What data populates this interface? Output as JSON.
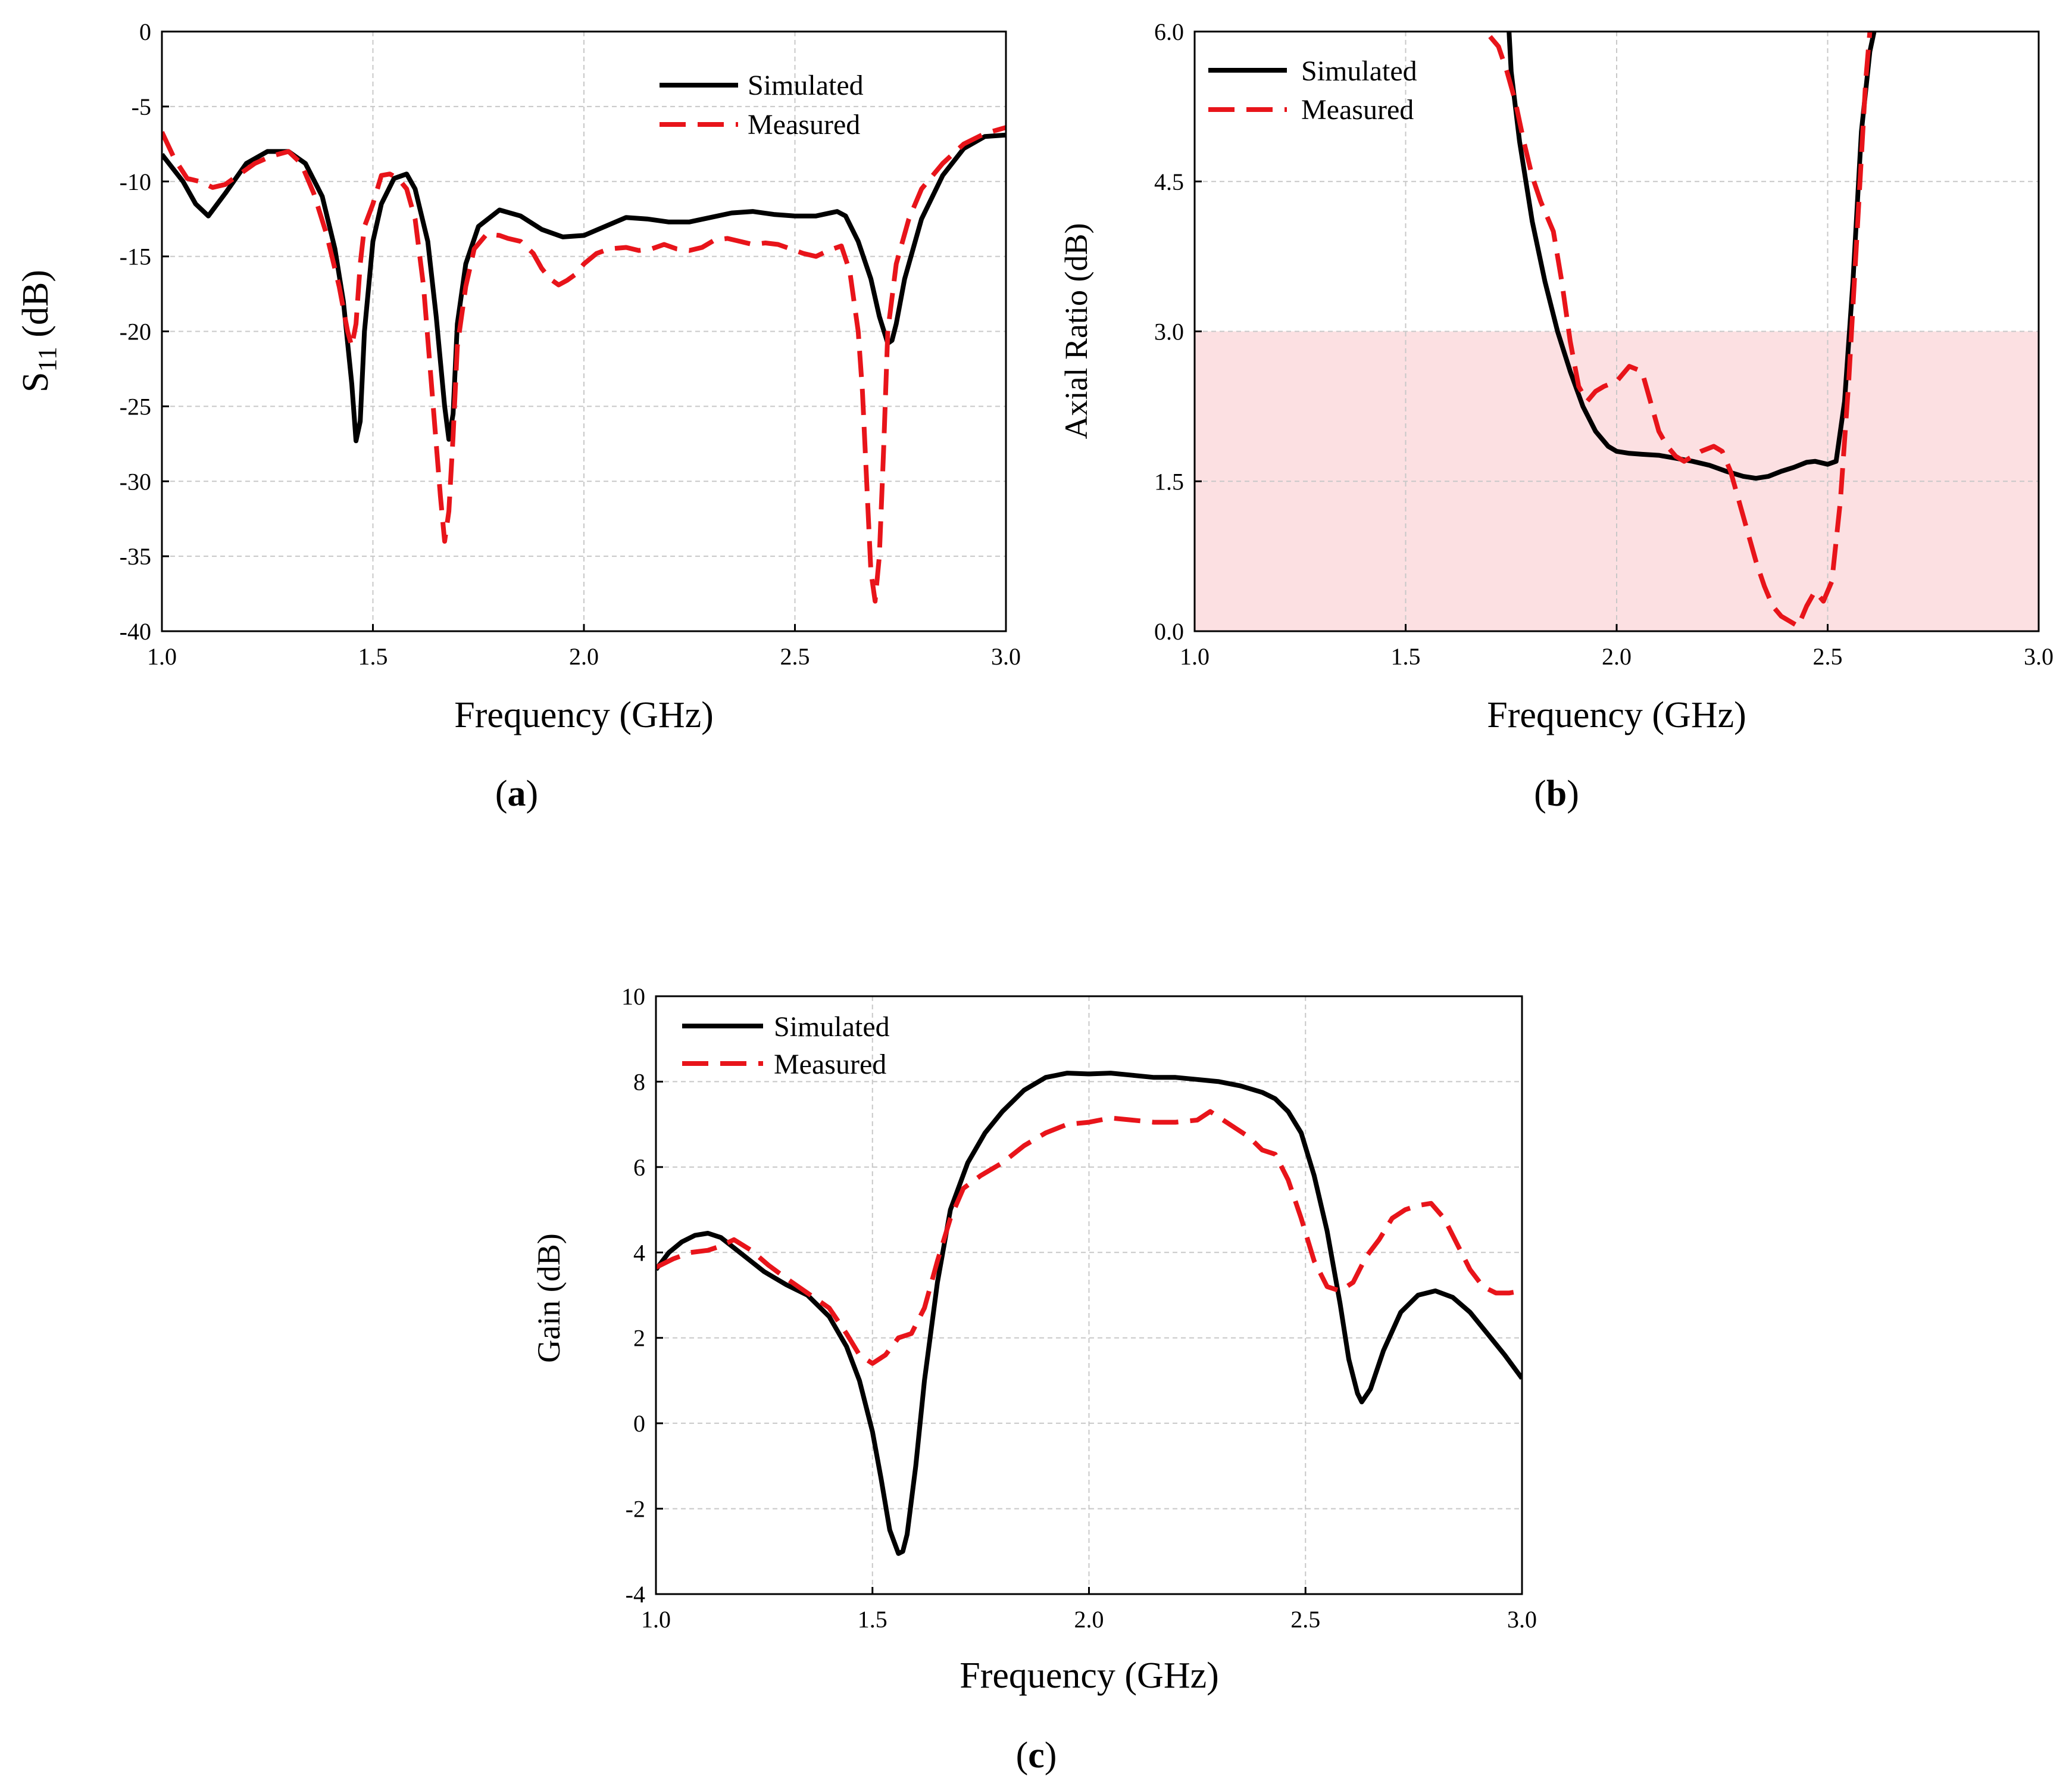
{
  "chart_data": [
    {
      "type": "line",
      "panel_label": "a",
      "xlabel": "Frequency (GHz)",
      "ylabel": {
        "main": "S",
        "sub": "11",
        "rest": " (dB)"
      },
      "xlim": [
        1.0,
        3.0
      ],
      "ylim": [
        -40,
        0
      ],
      "xticks": [
        1.0,
        1.5,
        2.0,
        2.5,
        3.0
      ],
      "xtick_labels": [
        "1.0",
        "1.5",
        "2.0",
        "2.5",
        "3.0"
      ],
      "yticks": [
        0,
        -5,
        -10,
        -15,
        -20,
        -25,
        -30,
        -35,
        -40
      ],
      "ytick_labels": [
        "0",
        "-5",
        "-10",
        "-15",
        "-20",
        "-25",
        "-30",
        "-35",
        "-40"
      ],
      "grid": true,
      "legend_position": "top-right",
      "series": [
        {
          "name": "Simulated",
          "color": "#000000",
          "style": "solid",
          "x": [
            1.0,
            1.05,
            1.08,
            1.11,
            1.15,
            1.2,
            1.25,
            1.3,
            1.34,
            1.38,
            1.41,
            1.43,
            1.45,
            1.46,
            1.47,
            1.48,
            1.5,
            1.52,
            1.55,
            1.58,
            1.6,
            1.63,
            1.65,
            1.67,
            1.68,
            1.69,
            1.7,
            1.72,
            1.75,
            1.8,
            1.85,
            1.9,
            1.95,
            2.0,
            2.05,
            2.1,
            2.15,
            2.2,
            2.25,
            2.3,
            2.35,
            2.4,
            2.45,
            2.5,
            2.55,
            2.6,
            2.62,
            2.65,
            2.68,
            2.7,
            2.72,
            2.73,
            2.74,
            2.76,
            2.8,
            2.85,
            2.9,
            2.95,
            3.0
          ],
          "y": [
            -8.2,
            -10.0,
            -11.5,
            -12.3,
            -10.8,
            -8.8,
            -8.0,
            -8.0,
            -8.8,
            -11.0,
            -14.5,
            -18.0,
            -23.5,
            -27.3,
            -26.0,
            -20.0,
            -14.0,
            -11.5,
            -9.8,
            -9.5,
            -10.5,
            -14.0,
            -19.0,
            -25.0,
            -27.2,
            -25.5,
            -19.5,
            -15.5,
            -13.0,
            -11.9,
            -12.3,
            -13.2,
            -13.7,
            -13.6,
            -13.0,
            -12.4,
            -12.5,
            -12.7,
            -12.7,
            -12.4,
            -12.1,
            -12.0,
            -12.2,
            -12.3,
            -12.3,
            -12.0,
            -12.3,
            -14.0,
            -16.5,
            -19.0,
            -20.8,
            -20.6,
            -19.5,
            -16.5,
            -12.5,
            -9.6,
            -7.8,
            -7.0,
            -6.9
          ]
        },
        {
          "name": "Measured",
          "color": "#e8141a",
          "style": "dashed",
          "x": [
            1.0,
            1.03,
            1.06,
            1.09,
            1.12,
            1.15,
            1.18,
            1.22,
            1.26,
            1.3,
            1.33,
            1.36,
            1.39,
            1.42,
            1.44,
            1.45,
            1.46,
            1.47,
            1.48,
            1.5,
            1.52,
            1.54,
            1.56,
            1.58,
            1.6,
            1.62,
            1.64,
            1.66,
            1.67,
            1.68,
            1.69,
            1.7,
            1.72,
            1.74,
            1.77,
            1.8,
            1.82,
            1.85,
            1.88,
            1.9,
            1.92,
            1.94,
            1.96,
            1.98,
            2.0,
            2.03,
            2.06,
            2.1,
            2.13,
            2.16,
            2.19,
            2.22,
            2.25,
            2.28,
            2.31,
            2.34,
            2.37,
            2.4,
            2.43,
            2.46,
            2.49,
            2.52,
            2.55,
            2.58,
            2.61,
            2.63,
            2.65,
            2.66,
            2.67,
            2.68,
            2.69,
            2.7,
            2.71,
            2.72,
            2.74,
            2.77,
            2.8,
            2.85,
            2.9,
            2.95,
            3.0
          ],
          "y": [
            -6.7,
            -8.5,
            -9.8,
            -10.0,
            -10.4,
            -10.2,
            -9.6,
            -8.8,
            -8.3,
            -8.0,
            -8.8,
            -10.8,
            -13.5,
            -17.0,
            -20.0,
            -21.0,
            -19.5,
            -15.5,
            -13.0,
            -11.5,
            -9.6,
            -9.5,
            -9.8,
            -10.5,
            -12.5,
            -17.0,
            -24.0,
            -31.0,
            -34.0,
            -32.0,
            -27.0,
            -21.0,
            -17.0,
            -14.5,
            -13.5,
            -13.6,
            -13.8,
            -14.0,
            -14.8,
            -15.8,
            -16.5,
            -16.9,
            -16.6,
            -16.2,
            -15.5,
            -14.8,
            -14.5,
            -14.4,
            -14.6,
            -14.5,
            -14.2,
            -14.5,
            -14.6,
            -14.4,
            -13.9,
            -13.8,
            -14.0,
            -14.2,
            -14.1,
            -14.2,
            -14.5,
            -14.8,
            -15.0,
            -14.6,
            -14.3,
            -16.0,
            -20.0,
            -24.0,
            -30.0,
            -36.0,
            -38.0,
            -35.0,
            -28.0,
            -20.0,
            -15.5,
            -12.5,
            -10.5,
            -8.8,
            -7.5,
            -6.8,
            -6.4
          ]
        }
      ]
    },
    {
      "type": "line",
      "panel_label": "b",
      "xlabel": "Frequency (GHz)",
      "ylabel": "Axial Ratio (dB)",
      "xlim": [
        1.0,
        3.0
      ],
      "ylim": [
        0.0,
        6.0
      ],
      "xticks": [
        1.0,
        1.5,
        2.0,
        2.5,
        3.0
      ],
      "xtick_labels": [
        "1.0",
        "1.5",
        "2.0",
        "2.5",
        "3.0"
      ],
      "yticks": [
        0.0,
        1.5,
        3.0,
        4.5,
        6.0
      ],
      "ytick_labels": [
        "0.0",
        "1.5",
        "3.0",
        "4.5",
        "6.0"
      ],
      "grid": true,
      "legend_position": "top-left",
      "shaded_region": {
        "y_from": 0.0,
        "y_to": 3.0,
        "color": "#fce0e2"
      },
      "series": [
        {
          "name": "Simulated",
          "color": "#000000",
          "style": "solid",
          "x": [
            1.745,
            1.75,
            1.77,
            1.8,
            1.83,
            1.86,
            1.89,
            1.92,
            1.95,
            1.98,
            2.0,
            2.03,
            2.06,
            2.1,
            2.14,
            2.18,
            2.22,
            2.26,
            2.3,
            2.33,
            2.36,
            2.39,
            2.42,
            2.45,
            2.47,
            2.5,
            2.52,
            2.54,
            2.56,
            2.58,
            2.6,
            2.61
          ],
          "y": [
            6.0,
            5.6,
            4.9,
            4.1,
            3.5,
            3.0,
            2.6,
            2.25,
            2.0,
            1.85,
            1.8,
            1.78,
            1.77,
            1.76,
            1.73,
            1.7,
            1.66,
            1.6,
            1.55,
            1.53,
            1.55,
            1.6,
            1.64,
            1.69,
            1.7,
            1.67,
            1.7,
            2.3,
            3.5,
            5.0,
            5.8,
            6.0
          ]
        },
        {
          "name": "Measured",
          "color": "#e8141a",
          "style": "dashed",
          "x": [
            1.7,
            1.72,
            1.74,
            1.76,
            1.78,
            1.8,
            1.82,
            1.85,
            1.87,
            1.89,
            1.91,
            1.93,
            1.95,
            1.97,
            2.0,
            2.03,
            2.06,
            2.08,
            2.1,
            2.12,
            2.14,
            2.16,
            2.18,
            2.2,
            2.23,
            2.25,
            2.27,
            2.29,
            2.31,
            2.33,
            2.35,
            2.37,
            2.39,
            2.41,
            2.43,
            2.45,
            2.47,
            2.49,
            2.51,
            2.53,
            2.55,
            2.57,
            2.59,
            2.6
          ],
          "y": [
            5.95,
            5.85,
            5.6,
            5.3,
            4.9,
            4.55,
            4.3,
            4.0,
            3.5,
            2.9,
            2.45,
            2.3,
            2.4,
            2.45,
            2.5,
            2.65,
            2.6,
            2.3,
            2.0,
            1.85,
            1.75,
            1.7,
            1.75,
            1.8,
            1.85,
            1.8,
            1.6,
            1.3,
            1.0,
            0.7,
            0.45,
            0.25,
            0.15,
            0.1,
            0.05,
            0.25,
            0.4,
            0.3,
            0.5,
            1.3,
            2.5,
            4.0,
            5.5,
            6.0
          ]
        }
      ]
    },
    {
      "type": "line",
      "panel_label": "c",
      "xlabel": "Frequency (GHz)",
      "ylabel": "Gain (dB)",
      "xlim": [
        1.0,
        3.0
      ],
      "ylim": [
        -4,
        10
      ],
      "xticks": [
        1.0,
        1.5,
        2.0,
        2.5,
        3.0
      ],
      "xtick_labels": [
        "1.0",
        "1.5",
        "2.0",
        "2.5",
        "3.0"
      ],
      "yticks": [
        10,
        8,
        6,
        4,
        2,
        0,
        -2,
        -4
      ],
      "ytick_labels": [
        "10",
        "8",
        "6",
        "4",
        "2",
        "0",
        "-2",
        "-4"
      ],
      "grid": true,
      "legend_position": "top-left",
      "series": [
        {
          "name": "Simulated",
          "color": "#000000",
          "style": "solid",
          "x": [
            1.0,
            1.03,
            1.06,
            1.09,
            1.12,
            1.15,
            1.2,
            1.25,
            1.3,
            1.35,
            1.4,
            1.44,
            1.47,
            1.5,
            1.52,
            1.54,
            1.56,
            1.57,
            1.58,
            1.6,
            1.62,
            1.65,
            1.68,
            1.72,
            1.76,
            1.8,
            1.85,
            1.9,
            1.95,
            2.0,
            2.05,
            2.1,
            2.15,
            2.2,
            2.25,
            2.3,
            2.35,
            2.4,
            2.43,
            2.46,
            2.49,
            2.52,
            2.55,
            2.58,
            2.6,
            2.62,
            2.63,
            2.65,
            2.68,
            2.72,
            2.76,
            2.8,
            2.84,
            2.88,
            2.92,
            2.96,
            3.0
          ],
          "y": [
            3.6,
            4.0,
            4.25,
            4.4,
            4.45,
            4.35,
            3.95,
            3.55,
            3.25,
            3.0,
            2.5,
            1.8,
            1.0,
            -0.2,
            -1.3,
            -2.5,
            -3.05,
            -3.0,
            -2.6,
            -1.0,
            1.0,
            3.3,
            5.0,
            6.1,
            6.8,
            7.3,
            7.8,
            8.1,
            8.2,
            8.18,
            8.2,
            8.15,
            8.1,
            8.1,
            8.05,
            8.0,
            7.9,
            7.75,
            7.6,
            7.3,
            6.8,
            5.8,
            4.5,
            2.8,
            1.5,
            0.7,
            0.5,
            0.8,
            1.7,
            2.6,
            3.0,
            3.1,
            2.95,
            2.6,
            2.1,
            1.6,
            1.05
          ]
        },
        {
          "name": "Measured",
          "color": "#e8141a",
          "style": "dashed",
          "x": [
            1.0,
            1.04,
            1.08,
            1.12,
            1.15,
            1.18,
            1.22,
            1.26,
            1.3,
            1.35,
            1.4,
            1.44,
            1.47,
            1.5,
            1.53,
            1.56,
            1.59,
            1.62,
            1.65,
            1.68,
            1.71,
            1.75,
            1.8,
            1.85,
            1.9,
            1.95,
            2.0,
            2.05,
            2.1,
            2.15,
            2.2,
            2.25,
            2.28,
            2.31,
            2.34,
            2.37,
            2.4,
            2.43,
            2.46,
            2.49,
            2.52,
            2.55,
            2.58,
            2.61,
            2.64,
            2.67,
            2.7,
            2.73,
            2.76,
            2.79,
            2.82,
            2.85,
            2.88,
            2.91,
            2.94,
            2.97,
            3.0
          ],
          "y": [
            3.65,
            3.85,
            4.0,
            4.05,
            4.15,
            4.3,
            4.05,
            3.7,
            3.4,
            3.05,
            2.7,
            2.1,
            1.6,
            1.4,
            1.6,
            2.0,
            2.1,
            2.7,
            3.8,
            4.8,
            5.5,
            5.8,
            6.1,
            6.5,
            6.8,
            7.0,
            7.05,
            7.15,
            7.1,
            7.05,
            7.05,
            7.1,
            7.3,
            7.1,
            6.9,
            6.7,
            6.4,
            6.3,
            5.7,
            4.8,
            3.8,
            3.2,
            3.1,
            3.3,
            3.9,
            4.3,
            4.8,
            5.0,
            5.1,
            5.15,
            4.8,
            4.2,
            3.6,
            3.2,
            3.05,
            3.05,
            3.1
          ]
        }
      ]
    }
  ]
}
